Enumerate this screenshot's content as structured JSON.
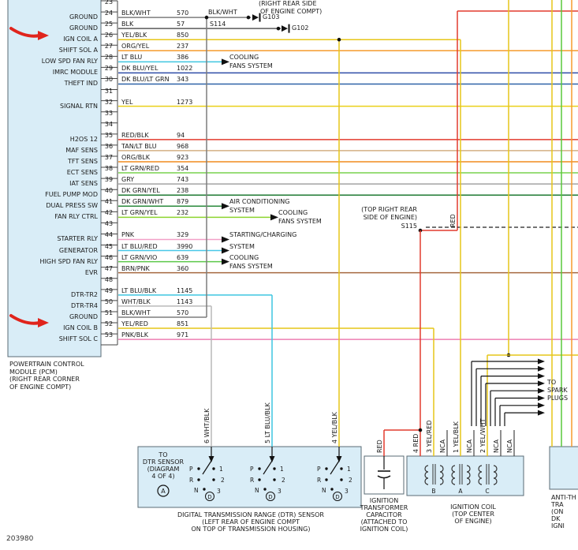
{
  "diagram_id": "203980",
  "colors": {
    "box_fill": "#d9edf7",
    "box_border": "#5a6b75",
    "text": "#1a1a1a",
    "dot": "#111111",
    "red_marker": "#e0241c",
    "red_wire": "#e23b2e",
    "yellow_wire": "#e6c619",
    "green_wire": "#58c93a",
    "orange_wire": "#f59b2d",
    "nca_wire": "#444444"
  },
  "top_note": [
    "(RIGHT REAR SIDE",
    "OF ENGINE COMPT)"
  ],
  "s114_wire_label": "BLK/WHT",
  "splices": {
    "s114": "S114",
    "g103": "G103",
    "g102": "G102",
    "s115": "S115"
  },
  "s115_note": [
    "(TOP RIGHT REAR",
    "SIDE OF ENGINE)"
  ],
  "red_label": "RED",
  "pcm": {
    "caption": [
      "POWERTRAIN CONTROL",
      "MODULE (PCM)",
      "(RIGHT REAR CORNER",
      "OF ENGINE COMPT)"
    ]
  },
  "pins": [
    {
      "pin": "23",
      "label": "",
      "wire": "",
      "circuit": "",
      "color": "#888888"
    },
    {
      "pin": "24",
      "label": "GROUND",
      "wire": "BLK/WHT",
      "circuit": "570",
      "color": "#7d7d7d"
    },
    {
      "pin": "25",
      "label": "GROUND",
      "wire": "BLK",
      "circuit": "57",
      "color": "#5a5a5a"
    },
    {
      "pin": "26",
      "label": "IGN COIL A",
      "wire": "YEL/BLK",
      "circuit": "850",
      "color": "#e6c619"
    },
    {
      "pin": "27",
      "label": "SHIFT SOL A",
      "wire": "ORG/YEL",
      "circuit": "237",
      "color": "#f59b2d"
    },
    {
      "pin": "28",
      "label": "LOW SPD FAN RLY",
      "wire": "LT BLU",
      "circuit": "386",
      "color": "#3fc6e0"
    },
    {
      "pin": "29",
      "label": "IMRC MODULE",
      "wire": "DK BLU/YEL",
      "circuit": "1022",
      "color": "#2f4da8"
    },
    {
      "pin": "30",
      "label": "THEFT IND",
      "wire": "DK BLU/LT GRN",
      "circuit": "343",
      "color": "#2f62a8"
    },
    {
      "pin": "31",
      "label": "",
      "wire": "",
      "circuit": "",
      "color": ""
    },
    {
      "pin": "32",
      "label": "SIGNAL RTN",
      "wire": "YEL",
      "circuit": "1273",
      "color": "#ead018"
    },
    {
      "pin": "33",
      "label": "",
      "wire": "",
      "circuit": "",
      "color": ""
    },
    {
      "pin": "34",
      "label": "",
      "wire": "",
      "circuit": "",
      "color": ""
    },
    {
      "pin": "35",
      "label": "H2OS 12",
      "wire": "RED/BLK",
      "circuit": "94",
      "color": "#e23b2e"
    },
    {
      "pin": "36",
      "label": "MAF SENS",
      "wire": "TAN/LT BLU",
      "circuit": "968",
      "color": "#d3b184"
    },
    {
      "pin": "37",
      "label": "TFT SENS",
      "wire": "ORG/BLK",
      "circuit": "923",
      "color": "#f08c1e"
    },
    {
      "pin": "38",
      "label": "ECT SENS",
      "wire": "LT GRN/RED",
      "circuit": "354",
      "color": "#79d24f"
    },
    {
      "pin": "39",
      "label": "IAT SENS",
      "wire": "GRY",
      "circuit": "743",
      "color": "#a3a3a3"
    },
    {
      "pin": "40",
      "label": "FUEL PUMP MOD",
      "wire": "DK GRN/YEL",
      "circuit": "238",
      "color": "#1f7a33"
    },
    {
      "pin": "41",
      "label": "DUAL PRESS SW",
      "wire": "DK GRN/WHT",
      "circuit": "879",
      "color": "#2a8a3c"
    },
    {
      "pin": "42",
      "label": "FAN RLY CTRL",
      "wire": "LT GRN/YEL",
      "circuit": "232",
      "color": "#8cd42f"
    },
    {
      "pin": "43",
      "label": "",
      "wire": "",
      "circuit": "",
      "color": ""
    },
    {
      "pin": "44",
      "label": "STARTER RLY",
      "wire": "PNK",
      "circuit": "329",
      "color": "#f2a0c8"
    },
    {
      "pin": "45",
      "label": "GENERATOR",
      "wire": "LT BLU/RED",
      "circuit": "3990",
      "color": "#48c8e8"
    },
    {
      "pin": "46",
      "label": "HIGH SPD FAN RLY",
      "wire": "LT GRN/VIO",
      "circuit": "639",
      "color": "#5cc84a"
    },
    {
      "pin": "47",
      "label": "EVR",
      "wire": "BRN/PNK",
      "circuit": "360",
      "color": "#a5673f"
    },
    {
      "pin": "48",
      "label": "",
      "wire": "",
      "circuit": "",
      "color": ""
    },
    {
      "pin": "49",
      "label": "DTR-TR2",
      "wire": "LT BLU/BLK",
      "circuit": "1145",
      "color": "#3fc6e0"
    },
    {
      "pin": "50",
      "label": "DTR-TR4",
      "wire": "WHT/BLK",
      "circuit": "1143",
      "color": "#b9b9b9"
    },
    {
      "pin": "51",
      "label": "GROUND",
      "wire": "BLK/WHT",
      "circuit": "570",
      "color": "#7d7d7d"
    },
    {
      "pin": "52",
      "label": "IGN COIL B",
      "wire": "YEL/RED",
      "circuit": "851",
      "color": "#e6c619"
    },
    {
      "pin": "53",
      "label": "SHIFT SOL C",
      "wire": "PNK/BLK",
      "circuit": "971",
      "color": "#ee7fb2"
    }
  ],
  "system_labels": {
    "cooling1": [
      "COOLING",
      "FANS SYSTEM"
    ],
    "ac": [
      "AIR CONDITIONING",
      "SYSTEM"
    ],
    "cooling2": [
      "COOLING",
      "FANS SYSTEM"
    ],
    "starting": [
      "STARTING/CHARGING",
      "SYSTEM"
    ],
    "cooling3": [
      "COOLING",
      "FANS SYSTEM"
    ]
  },
  "dtr": {
    "note": [
      "TO",
      "DTR SENSOR",
      "(DIAGRAM",
      "4 OF 4)"
    ],
    "circle_label": "A",
    "wire_labels": [
      "6 WHT/BLK",
      "5 LT BLU/BLK",
      "4 YEL/BLK"
    ],
    "positions": [
      "P",
      "R",
      "N",
      "D"
    ],
    "terminals": [
      "1",
      "2",
      "3"
    ],
    "caption": [
      "DIGITAL TRANSMISSION RANGE (DTR) SENSOR",
      "(LEFT REAR OF ENGINE COMPT",
      "ON TOP OF TRANSMISSION HOUSING)"
    ]
  },
  "capacitor": {
    "wire_label": "RED",
    "caption": [
      "IGNITION",
      "TRANSFORMER",
      "CAPACITOR",
      "(ATTACHED TO",
      "IGNITION COIL)"
    ]
  },
  "coil": {
    "pin_labels": [
      "4 RED",
      "3 YEL/RED",
      "NCA",
      "1 YEL/BLK",
      "NCA",
      "2 YEL/WHT",
      "NCA",
      "NCA"
    ],
    "winding_labels": [
      "B",
      "A",
      "C"
    ],
    "caption": [
      "IGNITION COIL",
      "(TOP CENTER",
      "OF ENGINE)"
    ]
  },
  "spark": {
    "label": [
      "TO",
      "SPARK",
      "PLUGS"
    ],
    "count": 8
  },
  "anti_theft": {
    "caption": [
      "ANTI-TH",
      "TRA",
      "(ON",
      "DK",
      "IGNI"
    ]
  }
}
